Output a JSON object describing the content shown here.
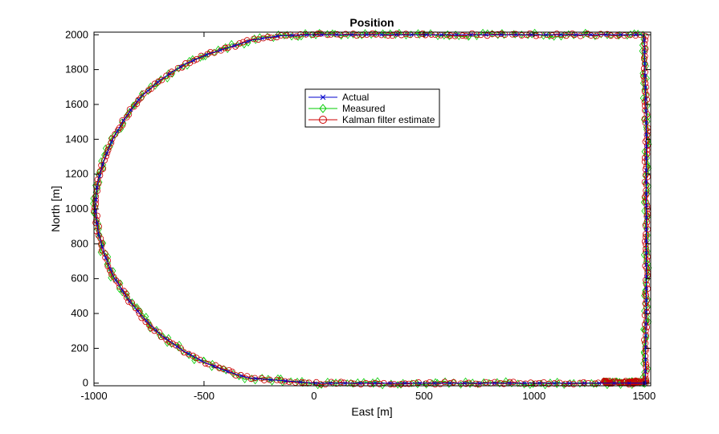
{
  "chart_data": {
    "type": "line",
    "title": "Position",
    "xlabel": "East [m]",
    "ylabel": "North [m]",
    "xlim": [
      -1000,
      1530
    ],
    "ylim": [
      -15,
      2015
    ],
    "x_ticks": [
      -1000,
      -500,
      0,
      500,
      1000,
      1500
    ],
    "y_ticks": [
      0,
      200,
      400,
      600,
      800,
      1000,
      1200,
      1400,
      1600,
      1800,
      2000
    ],
    "grid": false,
    "legend_position": "upper-center",
    "series": [
      {
        "name": "Actual",
        "color": "#0000cc",
        "marker": "x",
        "path": [
          [
            1500,
            0
          ],
          [
            600,
            0
          ],
          [
            0,
            0
          ],
          [
            -300,
            30
          ],
          [
            -400,
            70
          ],
          [
            -500,
            120
          ],
          [
            -600,
            190
          ],
          [
            -700,
            280
          ],
          [
            -780,
            380
          ],
          [
            -850,
            490
          ],
          [
            -910,
            610
          ],
          [
            -950,
            730
          ],
          [
            -980,
            860
          ],
          [
            -995,
            1000
          ],
          [
            -985,
            1140
          ],
          [
            -955,
            1280
          ],
          [
            -915,
            1400
          ],
          [
            -860,
            1520
          ],
          [
            -790,
            1640
          ],
          [
            -700,
            1740
          ],
          [
            -590,
            1830
          ],
          [
            -480,
            1890
          ],
          [
            -380,
            1930
          ],
          [
            -280,
            1970
          ],
          [
            -150,
            1995
          ],
          [
            0,
            2000
          ],
          [
            500,
            2000
          ],
          [
            1000,
            2000
          ],
          [
            1500,
            2000
          ],
          [
            1510,
            1500
          ],
          [
            1510,
            1000
          ],
          [
            1510,
            500
          ],
          [
            1505,
            0
          ]
        ]
      },
      {
        "name": "Measured",
        "color": "#00cc00",
        "marker": "diamond"
      },
      {
        "name": "Kalman filter estimate",
        "color": "#cc0000",
        "marker": "circle"
      }
    ]
  }
}
